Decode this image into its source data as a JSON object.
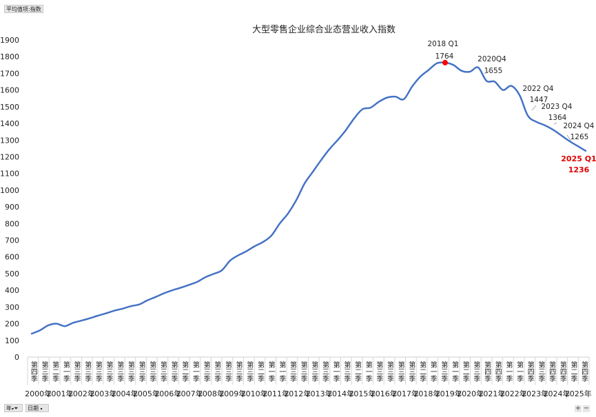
{
  "pivot": {
    "value_field": "平均值项:指数",
    "row_field_year": "年",
    "row_field_date": "日期"
  },
  "zoom": {
    "plus": "+",
    "minus": "−"
  },
  "icons": {
    "filter": "filter-icon",
    "dropdown": "chevron-down-icon"
  },
  "colors": {
    "line": "#4472C4",
    "highlight": "#FF0000",
    "final_label": "#E00000"
  },
  "chart_data": {
    "type": "line",
    "title": "大型零售企业综合业态营业收入指数",
    "xlabel": "",
    "ylabel": "",
    "ylim": [
      0,
      1900
    ],
    "yticks": [
      0,
      100,
      200,
      300,
      400,
      500,
      600,
      700,
      800,
      900,
      1000,
      1100,
      1200,
      1300,
      1400,
      1500,
      1600,
      1700,
      1800,
      1900
    ],
    "grid": false,
    "legend": "none",
    "year_labels": [
      "2000年",
      "2001年",
      "2002年",
      "2003年",
      "2004年",
      "2005年",
      "2006年",
      "2007年",
      "2008年",
      "2009年",
      "2010年",
      "2011年",
      "2012年",
      "2013年",
      "2014年",
      "2015年",
      "2016年",
      "2017年",
      "2018年",
      "2019年",
      "2020年",
      "2021年",
      "2022年",
      "2023年",
      "2024年",
      "2025年"
    ],
    "quarter_labels": [
      "第四季",
      "第三季",
      "第二季",
      "第一季",
      "第三季",
      "第三季",
      "第三季",
      "第三季",
      "第三季",
      "第三季",
      "第三季",
      "第三季",
      "第三季",
      "第三季",
      "第二季",
      "第一季",
      "第三季",
      "第三季",
      "第三季",
      "第三季",
      "第三季",
      "第二季",
      "第一季",
      "第一季",
      "第三季",
      "第三季",
      "第三季",
      "第三季",
      "第一季",
      "第三季",
      "第二季",
      "第一季",
      "第三季",
      "第三季",
      "第三季",
      "第三季",
      "第二季",
      "第一季",
      "第三季",
      "第一季",
      "第二季",
      "第三季",
      "第四季",
      "第四季",
      "第一季",
      "第一季",
      "第四季",
      "第三季",
      "第四季",
      "第四季",
      "第二季",
      "第四季"
    ],
    "series": [
      {
        "values": [
          140,
          160,
          190,
          200,
          185,
          205,
          218,
          232,
          248,
          262,
          278,
          290,
          305,
          315,
          340,
          360,
          382,
          400,
          415,
          432,
          450,
          478,
          498,
          520,
          578,
          610,
          635,
          665,
          690,
          728,
          800,
          860,
          940,
          1040,
          1110,
          1180,
          1245,
          1300,
          1360,
          1430,
          1485,
          1495,
          1530,
          1555,
          1560,
          1545,
          1620,
          1680,
          1720,
          1760,
          1764,
          1750,
          1715,
          1710,
          1735,
          1655,
          1650,
          1600,
          1625,
          1570,
          1447,
          1410,
          1390,
          1364,
          1330,
          1295,
          1265,
          1236
        ]
      }
    ],
    "annotations": [
      {
        "label": "2018 Q1",
        "value": "1764"
      },
      {
        "label": "2020Q4",
        "value": "1655"
      },
      {
        "label": "2022 Q4",
        "value": "1447"
      },
      {
        "label": "2023 Q4",
        "value": "1364"
      },
      {
        "label": "2024 Q4",
        "value": "1265"
      },
      {
        "label": "2025 Q1",
        "value": "1236"
      }
    ],
    "highlight_point": {
      "label": "2018 Q1",
      "value": 1764
    }
  }
}
